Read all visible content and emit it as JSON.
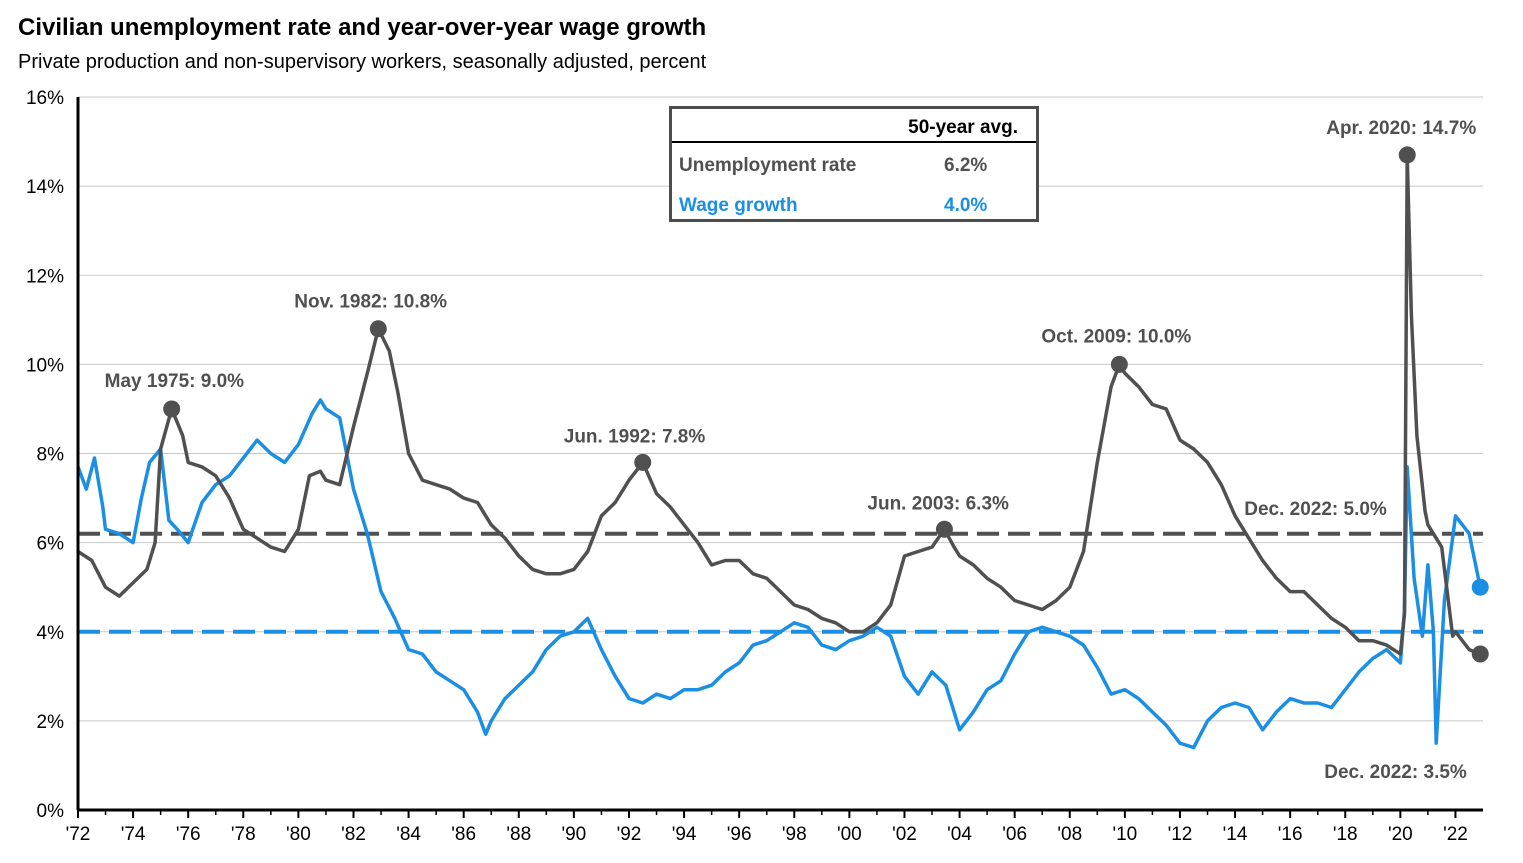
{
  "header": {
    "title": "Civilian unemployment rate and year-over-year wage growth",
    "subtitle": "Private production and non-supervisory workers, seasonally adjusted, percent"
  },
  "legend_box": {
    "header": "50-year avg.",
    "rows": [
      {
        "label": "Unemployment rate",
        "value": "6.2%",
        "color": "#505050"
      },
      {
        "label": "Wage growth",
        "value": "4.0%",
        "color": "#1a8fe3"
      }
    ]
  },
  "chart_data": {
    "type": "line",
    "x_tick_labels": [
      "'72",
      "'74",
      "'76",
      "'78",
      "'80",
      "'82",
      "'84",
      "'86",
      "'88",
      "'90",
      "'92",
      "'94",
      "'96",
      "'98",
      "'00",
      "'02",
      "'04",
      "'06",
      "'08",
      "'10",
      "'12",
      "'14",
      "'16",
      "'18",
      "'20",
      "'22"
    ],
    "y_tick_labels": [
      "0%",
      "2%",
      "4%",
      "6%",
      "8%",
      "10%",
      "12%",
      "14%",
      "16%"
    ],
    "xlim": [
      1972.0,
      2023.0
    ],
    "ylim": [
      0,
      16
    ],
    "grid": "horizontal",
    "averages": {
      "unemployment": 6.2,
      "wage_growth": 4.0
    },
    "series": [
      {
        "key": "unemployment",
        "color": "#505050",
        "points": [
          [
            1972.0,
            5.8
          ],
          [
            1972.5,
            5.6
          ],
          [
            1973.0,
            5.0
          ],
          [
            1973.5,
            4.8
          ],
          [
            1974.0,
            5.1
          ],
          [
            1974.5,
            5.4
          ],
          [
            1974.8,
            6.0
          ],
          [
            1975.0,
            8.1
          ],
          [
            1975.4,
            9.0
          ],
          [
            1975.8,
            8.4
          ],
          [
            1976.0,
            7.8
          ],
          [
            1976.5,
            7.7
          ],
          [
            1977.0,
            7.5
          ],
          [
            1977.5,
            7.0
          ],
          [
            1978.0,
            6.3
          ],
          [
            1978.5,
            6.1
          ],
          [
            1979.0,
            5.9
          ],
          [
            1979.5,
            5.8
          ],
          [
            1980.0,
            6.3
          ],
          [
            1980.4,
            7.5
          ],
          [
            1980.8,
            7.6
          ],
          [
            1981.0,
            7.4
          ],
          [
            1981.5,
            7.3
          ],
          [
            1982.0,
            8.6
          ],
          [
            1982.5,
            9.8
          ],
          [
            1982.9,
            10.8
          ],
          [
            1983.3,
            10.3
          ],
          [
            1983.6,
            9.4
          ],
          [
            1984.0,
            8.0
          ],
          [
            1984.5,
            7.4
          ],
          [
            1985.0,
            7.3
          ],
          [
            1985.5,
            7.2
          ],
          [
            1986.0,
            7.0
          ],
          [
            1986.5,
            6.9
          ],
          [
            1987.0,
            6.4
          ],
          [
            1987.5,
            6.1
          ],
          [
            1988.0,
            5.7
          ],
          [
            1988.5,
            5.4
          ],
          [
            1989.0,
            5.3
          ],
          [
            1989.5,
            5.3
          ],
          [
            1990.0,
            5.4
          ],
          [
            1990.5,
            5.8
          ],
          [
            1991.0,
            6.6
          ],
          [
            1991.5,
            6.9
          ],
          [
            1992.0,
            7.4
          ],
          [
            1992.5,
            7.8
          ],
          [
            1993.0,
            7.1
          ],
          [
            1993.5,
            6.8
          ],
          [
            1994.0,
            6.4
          ],
          [
            1994.5,
            6.0
          ],
          [
            1995.0,
            5.5
          ],
          [
            1995.5,
            5.6
          ],
          [
            1996.0,
            5.6
          ],
          [
            1996.5,
            5.3
          ],
          [
            1997.0,
            5.2
          ],
          [
            1997.5,
            4.9
          ],
          [
            1998.0,
            4.6
          ],
          [
            1998.5,
            4.5
          ],
          [
            1999.0,
            4.3
          ],
          [
            1999.5,
            4.2
          ],
          [
            2000.0,
            4.0
          ],
          [
            2000.5,
            4.0
          ],
          [
            2001.0,
            4.2
          ],
          [
            2001.5,
            4.6
          ],
          [
            2002.0,
            5.7
          ],
          [
            2002.5,
            5.8
          ],
          [
            2003.0,
            5.9
          ],
          [
            2003.45,
            6.3
          ],
          [
            2003.8,
            5.9
          ],
          [
            2004.0,
            5.7
          ],
          [
            2004.5,
            5.5
          ],
          [
            2005.0,
            5.2
          ],
          [
            2005.5,
            5.0
          ],
          [
            2006.0,
            4.7
          ],
          [
            2006.5,
            4.6
          ],
          [
            2007.0,
            4.5
          ],
          [
            2007.5,
            4.7
          ],
          [
            2008.0,
            5.0
          ],
          [
            2008.5,
            5.8
          ],
          [
            2009.0,
            7.8
          ],
          [
            2009.5,
            9.5
          ],
          [
            2009.8,
            10.0
          ],
          [
            2010.0,
            9.8
          ],
          [
            2010.5,
            9.5
          ],
          [
            2011.0,
            9.1
          ],
          [
            2011.5,
            9.0
          ],
          [
            2012.0,
            8.3
          ],
          [
            2012.5,
            8.1
          ],
          [
            2013.0,
            7.8
          ],
          [
            2013.5,
            7.3
          ],
          [
            2014.0,
            6.6
          ],
          [
            2014.5,
            6.1
          ],
          [
            2015.0,
            5.6
          ],
          [
            2015.5,
            5.2
          ],
          [
            2016.0,
            4.9
          ],
          [
            2016.5,
            4.9
          ],
          [
            2017.0,
            4.6
          ],
          [
            2017.5,
            4.3
          ],
          [
            2018.0,
            4.1
          ],
          [
            2018.5,
            3.8
          ],
          [
            2019.0,
            3.8
          ],
          [
            2019.5,
            3.7
          ],
          [
            2020.0,
            3.5
          ],
          [
            2020.15,
            4.4
          ],
          [
            2020.25,
            14.7
          ],
          [
            2020.4,
            11.1
          ],
          [
            2020.6,
            8.4
          ],
          [
            2020.9,
            6.7
          ],
          [
            2021.0,
            6.4
          ],
          [
            2021.5,
            5.9
          ],
          [
            2021.9,
            3.9
          ],
          [
            2022.0,
            4.0
          ],
          [
            2022.5,
            3.6
          ],
          [
            2022.9,
            3.5
          ]
        ]
      },
      {
        "key": "wage_growth",
        "color": "#1a8fe3",
        "points": [
          [
            1972.0,
            7.7
          ],
          [
            1972.3,
            7.2
          ],
          [
            1972.6,
            7.9
          ],
          [
            1972.9,
            6.8
          ],
          [
            1973.0,
            6.3
          ],
          [
            1973.5,
            6.2
          ],
          [
            1974.0,
            6.0
          ],
          [
            1974.3,
            7.0
          ],
          [
            1974.6,
            7.8
          ],
          [
            1975.0,
            8.1
          ],
          [
            1975.3,
            6.5
          ],
          [
            1975.6,
            6.3
          ],
          [
            1976.0,
            6.0
          ],
          [
            1976.5,
            6.9
          ],
          [
            1977.0,
            7.3
          ],
          [
            1977.5,
            7.5
          ],
          [
            1978.0,
            7.9
          ],
          [
            1978.5,
            8.3
          ],
          [
            1979.0,
            8.0
          ],
          [
            1979.5,
            7.8
          ],
          [
            1980.0,
            8.2
          ],
          [
            1980.5,
            8.9
          ],
          [
            1980.8,
            9.2
          ],
          [
            1981.0,
            9.0
          ],
          [
            1981.5,
            8.8
          ],
          [
            1982.0,
            7.2
          ],
          [
            1982.5,
            6.2
          ],
          [
            1983.0,
            4.9
          ],
          [
            1983.5,
            4.3
          ],
          [
            1984.0,
            3.6
          ],
          [
            1984.5,
            3.5
          ],
          [
            1985.0,
            3.1
          ],
          [
            1985.5,
            2.9
          ],
          [
            1986.0,
            2.7
          ],
          [
            1986.5,
            2.2
          ],
          [
            1986.8,
            1.7
          ],
          [
            1987.0,
            2.0
          ],
          [
            1987.5,
            2.5
          ],
          [
            1988.0,
            2.8
          ],
          [
            1988.5,
            3.1
          ],
          [
            1989.0,
            3.6
          ],
          [
            1989.5,
            3.9
          ],
          [
            1990.0,
            4.0
          ],
          [
            1990.5,
            4.3
          ],
          [
            1991.0,
            3.6
          ],
          [
            1991.5,
            3.0
          ],
          [
            1992.0,
            2.5
          ],
          [
            1992.5,
            2.4
          ],
          [
            1993.0,
            2.6
          ],
          [
            1993.5,
            2.5
          ],
          [
            1994.0,
            2.7
          ],
          [
            1994.5,
            2.7
          ],
          [
            1995.0,
            2.8
          ],
          [
            1995.5,
            3.1
          ],
          [
            1996.0,
            3.3
          ],
          [
            1996.5,
            3.7
          ],
          [
            1997.0,
            3.8
          ],
          [
            1997.5,
            4.0
          ],
          [
            1998.0,
            4.2
          ],
          [
            1998.5,
            4.1
          ],
          [
            1999.0,
            3.7
          ],
          [
            1999.5,
            3.6
          ],
          [
            2000.0,
            3.8
          ],
          [
            2000.5,
            3.9
          ],
          [
            2001.0,
            4.1
          ],
          [
            2001.5,
            3.9
          ],
          [
            2002.0,
            3.0
          ],
          [
            2002.5,
            2.6
          ],
          [
            2003.0,
            3.1
          ],
          [
            2003.5,
            2.8
          ],
          [
            2003.8,
            2.2
          ],
          [
            2004.0,
            1.8
          ],
          [
            2004.5,
            2.2
          ],
          [
            2005.0,
            2.7
          ],
          [
            2005.5,
            2.9
          ],
          [
            2006.0,
            3.5
          ],
          [
            2006.5,
            4.0
          ],
          [
            2007.0,
            4.1
          ],
          [
            2007.5,
            4.0
          ],
          [
            2008.0,
            3.9
          ],
          [
            2008.5,
            3.7
          ],
          [
            2009.0,
            3.2
          ],
          [
            2009.5,
            2.6
          ],
          [
            2010.0,
            2.7
          ],
          [
            2010.5,
            2.5
          ],
          [
            2011.0,
            2.2
          ],
          [
            2011.5,
            1.9
          ],
          [
            2012.0,
            1.5
          ],
          [
            2012.5,
            1.4
          ],
          [
            2013.0,
            2.0
          ],
          [
            2013.5,
            2.3
          ],
          [
            2014.0,
            2.4
          ],
          [
            2014.5,
            2.3
          ],
          [
            2015.0,
            1.8
          ],
          [
            2015.5,
            2.2
          ],
          [
            2016.0,
            2.5
          ],
          [
            2016.5,
            2.4
          ],
          [
            2017.0,
            2.4
          ],
          [
            2017.5,
            2.3
          ],
          [
            2018.0,
            2.7
          ],
          [
            2018.5,
            3.1
          ],
          [
            2019.0,
            3.4
          ],
          [
            2019.5,
            3.6
          ],
          [
            2020.0,
            3.3
          ],
          [
            2020.15,
            4.5
          ],
          [
            2020.25,
            7.7
          ],
          [
            2020.5,
            5.2
          ],
          [
            2020.8,
            3.9
          ],
          [
            2021.0,
            5.5
          ],
          [
            2021.2,
            4.0
          ],
          [
            2021.3,
            1.5
          ],
          [
            2021.6,
            4.7
          ],
          [
            2022.0,
            6.6
          ],
          [
            2022.5,
            6.2
          ],
          [
            2022.9,
            5.0
          ]
        ]
      }
    ],
    "annotations": [
      {
        "x": 1975.4,
        "y": 9.0,
        "label": "May 1975: 9.0%",
        "series": "unemployment"
      },
      {
        "x": 1982.9,
        "y": 10.8,
        "label": "Nov. 1982: 10.8%",
        "series": "unemployment"
      },
      {
        "x": 1992.5,
        "y": 7.8,
        "label": "Jun. 1992: 7.8%",
        "series": "unemployment"
      },
      {
        "x": 2003.45,
        "y": 6.3,
        "label": "Jun. 2003: 6.3%",
        "series": "unemployment"
      },
      {
        "x": 2009.8,
        "y": 10.0,
        "label": "Oct. 2009: 10.0%",
        "series": "unemployment"
      },
      {
        "x": 2020.25,
        "y": 14.7,
        "label": "Apr. 2020: 14.7%",
        "series": "unemployment"
      },
      {
        "x": 2022.9,
        "y": 5.0,
        "label": "Dec. 2022: 5.0%",
        "series": "wage_growth"
      },
      {
        "x": 2022.9,
        "y": 3.5,
        "label": "Dec. 2022: 3.5%",
        "series": "unemployment"
      }
    ]
  }
}
